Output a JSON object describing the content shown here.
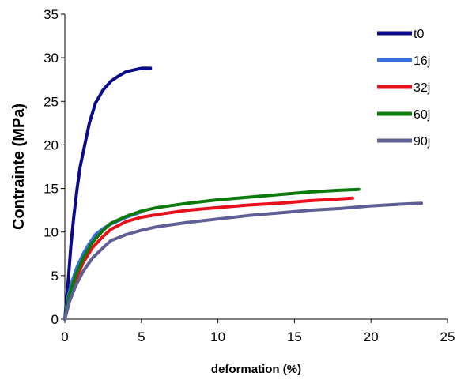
{
  "chart_data": {
    "type": "line",
    "title": "",
    "xlabel": "deformation (%)",
    "ylabel": "Contrainte (MPa)",
    "xlim": [
      0,
      25
    ],
    "ylim": [
      0,
      35
    ],
    "x_ticks": [
      "0",
      "5",
      "10",
      "15",
      "20",
      "25"
    ],
    "y_ticks": [
      "0",
      "5",
      "10",
      "15",
      "20",
      "25",
      "30",
      "35"
    ],
    "grid": false,
    "legend_position": "top-right",
    "series": [
      {
        "name": "t0",
        "color": "#0a0a8c",
        "points": [
          [
            0.0,
            0.0
          ],
          [
            0.1,
            2.0
          ],
          [
            0.25,
            5.0
          ],
          [
            0.4,
            8.5
          ],
          [
            0.6,
            12.0
          ],
          [
            0.8,
            15.0
          ],
          [
            1.0,
            17.5
          ],
          [
            1.3,
            20.0
          ],
          [
            1.6,
            22.5
          ],
          [
            2.0,
            24.8
          ],
          [
            2.5,
            26.3
          ],
          [
            3.0,
            27.3
          ],
          [
            3.5,
            27.9
          ],
          [
            4.0,
            28.4
          ],
          [
            4.5,
            28.6
          ],
          [
            5.0,
            28.8
          ],
          [
            5.6,
            28.8
          ]
        ]
      },
      {
        "name": "16j",
        "color": "#3a6fe0",
        "points": [
          [
            0.0,
            0.0
          ],
          [
            0.2,
            2.5
          ],
          [
            0.5,
            4.5
          ],
          [
            0.8,
            6.0
          ],
          [
            1.2,
            7.5
          ],
          [
            1.6,
            8.7
          ],
          [
            2.0,
            9.7
          ],
          [
            2.5,
            10.4
          ],
          [
            3.0,
            10.9
          ],
          [
            3.5,
            11.3
          ],
          [
            4.0,
            11.7
          ],
          [
            4.5,
            12.0
          ],
          [
            5.0,
            12.3
          ]
        ]
      },
      {
        "name": "32j",
        "color": "#e8101a",
        "points": [
          [
            0.0,
            0.0
          ],
          [
            0.3,
            2.5
          ],
          [
            0.7,
            4.5
          ],
          [
            1.2,
            6.5
          ],
          [
            1.8,
            8.2
          ],
          [
            2.5,
            9.5
          ],
          [
            3.0,
            10.3
          ],
          [
            4.0,
            11.2
          ],
          [
            5.0,
            11.7
          ],
          [
            6.0,
            12.0
          ],
          [
            8.0,
            12.5
          ],
          [
            10.0,
            12.8
          ],
          [
            12.0,
            13.1
          ],
          [
            14.0,
            13.3
          ],
          [
            16.0,
            13.6
          ],
          [
            18.0,
            13.8
          ],
          [
            18.8,
            13.9
          ]
        ]
      },
      {
        "name": "60j",
        "color": "#0a7a0a",
        "points": [
          [
            0.0,
            0.0
          ],
          [
            0.3,
            2.8
          ],
          [
            0.7,
            5.0
          ],
          [
            1.2,
            7.0
          ],
          [
            1.8,
            8.8
          ],
          [
            2.5,
            10.2
          ],
          [
            3.0,
            11.0
          ],
          [
            4.0,
            11.8
          ],
          [
            5.0,
            12.4
          ],
          [
            6.0,
            12.8
          ],
          [
            8.0,
            13.3
          ],
          [
            10.0,
            13.7
          ],
          [
            12.0,
            14.0
          ],
          [
            14.0,
            14.3
          ],
          [
            16.0,
            14.6
          ],
          [
            18.0,
            14.8
          ],
          [
            19.2,
            14.9
          ]
        ]
      },
      {
        "name": "90j",
        "color": "#5f5f96",
        "points": [
          [
            0.0,
            0.0
          ],
          [
            0.3,
            2.0
          ],
          [
            0.7,
            3.8
          ],
          [
            1.2,
            5.5
          ],
          [
            1.8,
            7.0
          ],
          [
            2.5,
            8.2
          ],
          [
            3.0,
            9.0
          ],
          [
            4.0,
            9.7
          ],
          [
            5.0,
            10.2
          ],
          [
            6.0,
            10.6
          ],
          [
            8.0,
            11.1
          ],
          [
            10.0,
            11.5
          ],
          [
            12.0,
            11.9
          ],
          [
            14.0,
            12.2
          ],
          [
            16.0,
            12.5
          ],
          [
            18.0,
            12.7
          ],
          [
            20.0,
            13.0
          ],
          [
            22.0,
            13.2
          ],
          [
            23.3,
            13.3
          ]
        ]
      }
    ]
  }
}
